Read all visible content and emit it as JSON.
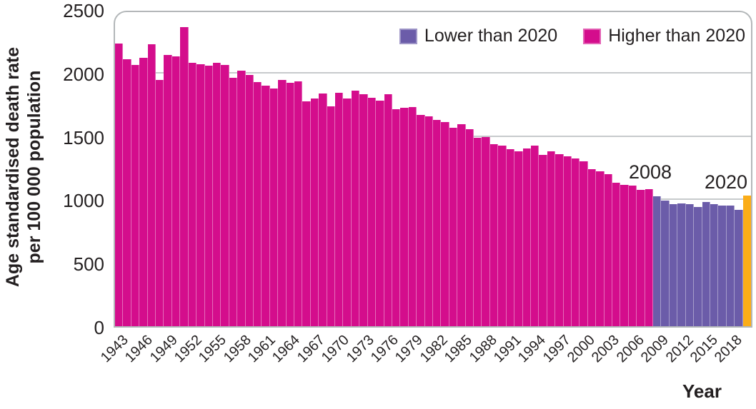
{
  "chart_data": {
    "type": "bar",
    "title": "",
    "ylabel_line1": "Age standardised death rate",
    "ylabel_line2": "per 100 000 population",
    "xlabel": "Year",
    "ylim": [
      0,
      2500
    ],
    "yticks": [
      0,
      500,
      1000,
      1500,
      2000,
      2500
    ],
    "xticks": [
      1943,
      1946,
      1949,
      1952,
      1955,
      1958,
      1961,
      1964,
      1967,
      1970,
      1973,
      1976,
      1979,
      1982,
      1985,
      1988,
      1991,
      1994,
      1997,
      2000,
      2003,
      2006,
      2009,
      2012,
      2015,
      2018
    ],
    "grid": "horizontal",
    "years": [
      1943,
      1944,
      1945,
      1946,
      1947,
      1948,
      1949,
      1950,
      1951,
      1952,
      1953,
      1954,
      1955,
      1956,
      1957,
      1958,
      1959,
      1960,
      1961,
      1962,
      1963,
      1964,
      1965,
      1966,
      1967,
      1968,
      1969,
      1970,
      1971,
      1972,
      1973,
      1974,
      1975,
      1976,
      1977,
      1978,
      1979,
      1980,
      1981,
      1982,
      1983,
      1984,
      1985,
      1986,
      1987,
      1988,
      1989,
      1990,
      1991,
      1992,
      1993,
      1994,
      1995,
      1996,
      1997,
      1998,
      1999,
      2000,
      2001,
      2002,
      2003,
      2004,
      2005,
      2006,
      2007,
      2008,
      2009,
      2010,
      2011,
      2012,
      2013,
      2014,
      2015,
      2016,
      2017,
      2018,
      2019,
      2020
    ],
    "values": [
      2250,
      2125,
      2080,
      2135,
      2245,
      1960,
      2160,
      2150,
      2380,
      2095,
      2085,
      2075,
      2095,
      2080,
      1975,
      2035,
      2000,
      1945,
      1915,
      1890,
      1960,
      1940,
      1950,
      1790,
      1810,
      1855,
      1750,
      1860,
      1815,
      1875,
      1845,
      1820,
      1795,
      1845,
      1730,
      1740,
      1745,
      1680,
      1670,
      1640,
      1625,
      1580,
      1610,
      1570,
      1500,
      1505,
      1450,
      1440,
      1410,
      1390,
      1415,
      1440,
      1365,
      1390,
      1370,
      1350,
      1335,
      1310,
      1250,
      1235,
      1210,
      1140,
      1125,
      1120,
      1085,
      1090,
      1035,
      1000,
      970,
      978,
      972,
      950,
      990,
      970,
      963,
      962,
      928,
      1040
    ],
    "colors": {
      "higher_than_2020": "#d40d8c",
      "lower_than_2020": "#6b5ca9",
      "bar_2020": "#fbad18"
    },
    "color_rule": {
      "pink_last_year": 2008,
      "purple_years": [
        2009,
        2019
      ],
      "orange_year": 2020
    },
    "annotations": [
      {
        "text": "2008"
      },
      {
        "text": "2020"
      }
    ]
  },
  "legend": {
    "items": [
      {
        "label": "Lower than 2020",
        "color": "#6b5ca9"
      },
      {
        "label": "Higher than 2020",
        "color": "#d40d8c"
      }
    ]
  }
}
